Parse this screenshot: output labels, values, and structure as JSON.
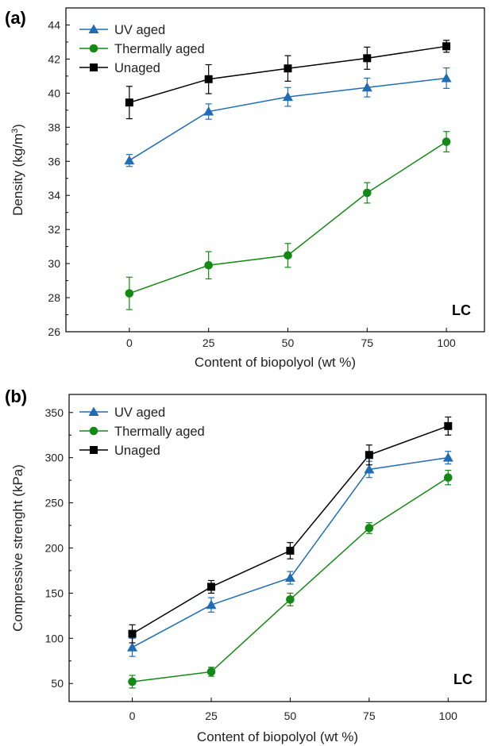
{
  "chart_data": [
    {
      "type": "line",
      "panel_label": "(a)",
      "annotation": "LC",
      "xlabel": "Content of biopolyol (wt %)",
      "ylabel_main": "Density (kg/m",
      "ylabel_sup": "3",
      "ylabel_close": ")",
      "x": [
        0,
        25,
        50,
        75,
        100
      ],
      "xlim": [
        -20,
        112
      ],
      "ylim": [
        26,
        45
      ],
      "xticks": [
        0,
        25,
        50,
        75,
        100
      ],
      "yticks": [
        26,
        28,
        30,
        32,
        34,
        36,
        38,
        40,
        42,
        44
      ],
      "legend_position": "top-left",
      "series": [
        {
          "name": "UV aged",
          "color": "#1f6db5",
          "marker": "triangle",
          "values": [
            36.05,
            38.92,
            39.78,
            40.33,
            40.88
          ],
          "errors": [
            0.35,
            0.45,
            0.55,
            0.55,
            0.6
          ]
        },
        {
          "name": "Thermally aged",
          "color": "#138a13",
          "marker": "circle",
          "values": [
            28.25,
            29.9,
            30.48,
            34.15,
            37.15
          ],
          "errors": [
            0.95,
            0.8,
            0.7,
            0.6,
            0.6
          ]
        },
        {
          "name": "Unaged",
          "color": "#000000",
          "marker": "square",
          "values": [
            39.45,
            40.82,
            41.45,
            42.05,
            42.75
          ],
          "errors": [
            0.95,
            0.85,
            0.75,
            0.65,
            0.35
          ]
        }
      ]
    },
    {
      "type": "line",
      "panel_label": "(b)",
      "annotation": "LC",
      "xlabel": "Content of biopolyol (wt %)",
      "ylabel_main": "Compressive strenght (kPa)",
      "ylabel_sup": "",
      "ylabel_close": "",
      "x": [
        0,
        25,
        50,
        75,
        100
      ],
      "xlim": [
        -20,
        112
      ],
      "ylim": [
        30,
        370
      ],
      "xticks": [
        0,
        25,
        50,
        75,
        100
      ],
      "yticks": [
        50,
        100,
        150,
        200,
        250,
        300,
        350
      ],
      "legend_position": "top-left",
      "series": [
        {
          "name": "UV aged",
          "color": "#1f6db5",
          "marker": "triangle",
          "values": [
            90,
            137,
            167,
            287,
            300
          ],
          "errors": [
            10,
            8,
            7,
            9,
            7
          ]
        },
        {
          "name": "Thermally aged",
          "color": "#138a13",
          "marker": "circle",
          "values": [
            52,
            63,
            143,
            222,
            278
          ],
          "errors": [
            7,
            5,
            7,
            6,
            8
          ]
        },
        {
          "name": "Unaged",
          "color": "#000000",
          "marker": "square",
          "values": [
            105,
            157,
            197,
            303,
            335
          ],
          "errors": [
            10,
            7,
            9,
            11,
            10
          ]
        }
      ]
    }
  ]
}
